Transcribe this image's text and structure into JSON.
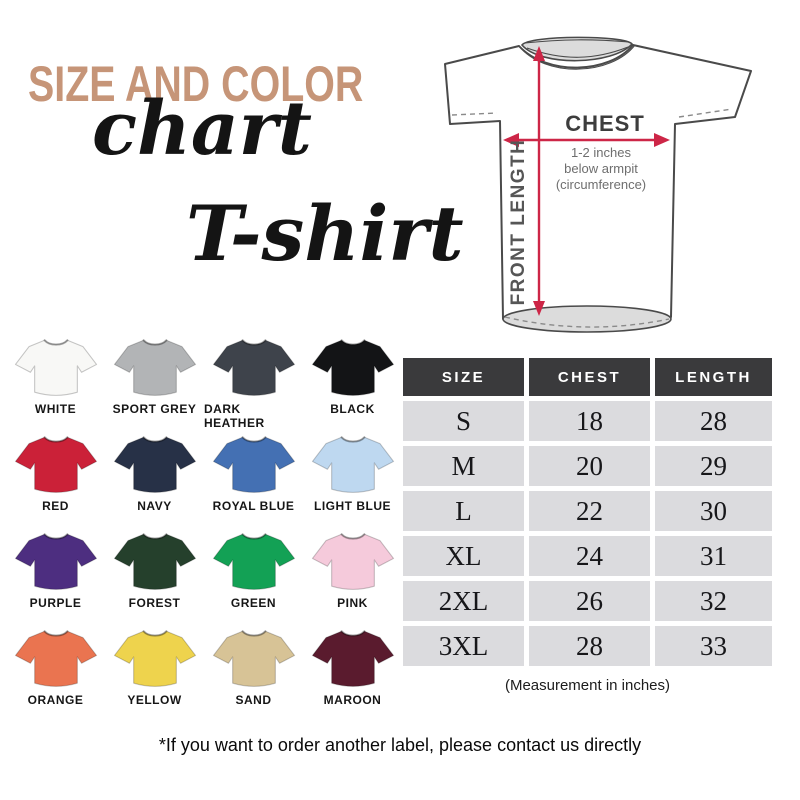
{
  "header": {
    "title_top": "SIZE AND COLOR",
    "title_script": "chart",
    "product": "T-shirt"
  },
  "colors": {
    "title_tan": "#c69578",
    "arrow_red": "#cd2647",
    "table_header_bg": "#3a3a3c",
    "table_cell_bg": "#dbdbde"
  },
  "diagram": {
    "chest_label": "CHEST",
    "note_line1": "1-2 inches",
    "note_line2": "below armpit",
    "note_line3": "(circumference)",
    "front_length_label": "FRONT LENGTH"
  },
  "swatches": [
    {
      "name": "WHITE",
      "color": "#f8f8f6"
    },
    {
      "name": "SPORT GREY",
      "color": "#b2b4b6"
    },
    {
      "name": "DARK HEATHER",
      "color": "#3e434b"
    },
    {
      "name": "BLACK",
      "color": "#131416"
    },
    {
      "name": "RED",
      "color": "#cb2138"
    },
    {
      "name": "NAVY",
      "color": "#273147"
    },
    {
      "name": "ROYAL BLUE",
      "color": "#4470b3"
    },
    {
      "name": "LIGHT BLUE",
      "color": "#bed8f0"
    },
    {
      "name": "PURPLE",
      "color": "#4d2e80"
    },
    {
      "name": "FOREST",
      "color": "#25402c"
    },
    {
      "name": "GREEN",
      "color": "#13a155"
    },
    {
      "name": "PINK",
      "color": "#f5cadb"
    },
    {
      "name": "ORANGE",
      "color": "#ea7450"
    },
    {
      "name": "YELLOW",
      "color": "#eed34d"
    },
    {
      "name": "SAND",
      "color": "#d7c396"
    },
    {
      "name": "MAROON",
      "color": "#5a1b2e"
    }
  ],
  "chart_data": {
    "type": "table",
    "columns": [
      "SIZE",
      "CHEST",
      "LENGTH"
    ],
    "rows": [
      [
        "S",
        "18",
        "28"
      ],
      [
        "M",
        "20",
        "29"
      ],
      [
        "L",
        "22",
        "30"
      ],
      [
        "XL",
        "24",
        "31"
      ],
      [
        "2XL",
        "26",
        "32"
      ],
      [
        "3XL",
        "28",
        "33"
      ]
    ],
    "caption": "(Measurement in inches)",
    "units": "inches"
  },
  "footer": {
    "note": "*If you want to order another label, please contact us directly"
  }
}
